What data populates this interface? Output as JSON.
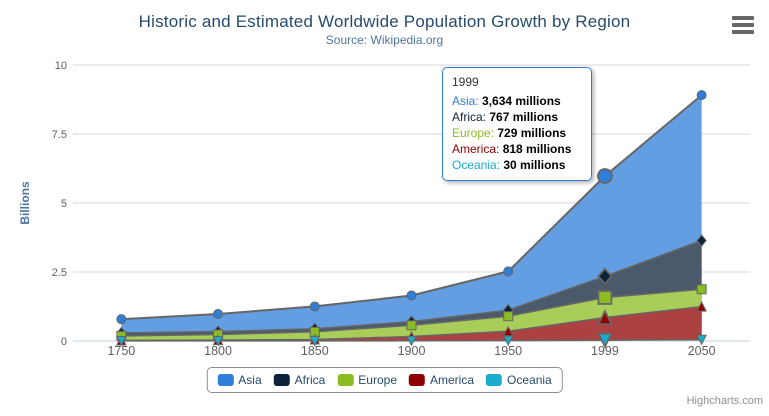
{
  "title": "Historic and Estimated Worldwide Population Growth by Region",
  "subtitle": "Source: Wikipedia.org",
  "credits": "Highcharts.com",
  "menu": {
    "icon": "hamburger-menu-icon"
  },
  "colors": {
    "title": "#274b6d",
    "subtitle": "#4d759e",
    "axis_title": "#4d759e",
    "tick_label": "#606060",
    "gridline": "#d8d8d8",
    "axis_line": "#c0d0e0",
    "series_outline": "#666666",
    "legend_text": "#274b6d",
    "legend_border": "#909090",
    "tooltip_border": "#2f7ed8"
  },
  "chart_data": {
    "type": "area",
    "stacking": "normal",
    "fill_opacity": 0.75,
    "title": "Historic and Estimated Worldwide Population Growth by Region",
    "subtitle": "Source: Wikipedia.org",
    "xlabel": "",
    "ylabel": "Billions",
    "ylim": [
      0,
      10
    ],
    "yticks": [
      0,
      2.5,
      5,
      7.5,
      10
    ],
    "ytick_labels": [
      "0",
      "2.5",
      "5",
      "7.5",
      "10"
    ],
    "grid": "horizontal",
    "legend_position": "bottom",
    "values_unit": "millions",
    "categories": [
      "1750",
      "1800",
      "1850",
      "1900",
      "1950",
      "1999",
      "2050"
    ],
    "stack_order_bottom_to_top": [
      "Oceania",
      "America",
      "Europe",
      "Africa",
      "Asia"
    ],
    "hovered_category_index": 5,
    "series": [
      {
        "name": "Asia",
        "color": "#2f7ed8",
        "marker": "circle",
        "values": [
          502,
          635,
          809,
          947,
          1402,
          3634,
          5268
        ]
      },
      {
        "name": "Africa",
        "color": "#0d233a",
        "marker": "diamond",
        "values": [
          106,
          107,
          111,
          133,
          221,
          767,
          1766
        ]
      },
      {
        "name": "Europe",
        "color": "#8bbc21",
        "marker": "square",
        "values": [
          163,
          203,
          276,
          408,
          547,
          729,
          628
        ]
      },
      {
        "name": "America",
        "color": "#910000",
        "marker": "triangle-up",
        "values": [
          18,
          31,
          54,
          156,
          339,
          818,
          1201
        ]
      },
      {
        "name": "Oceania",
        "color": "#1aadce",
        "marker": "triangle-down",
        "values": [
          2,
          2,
          2,
          6,
          13,
          30,
          46
        ]
      }
    ]
  },
  "tooltip": {
    "header": "1999",
    "rows": [
      {
        "label": "Asia",
        "value": "3,634 millions",
        "color": "#2f7ed8"
      },
      {
        "label": "Africa",
        "value": "767 millions",
        "color": "#0d233a"
      },
      {
        "label": "Europe",
        "value": "729 millions",
        "color": "#8bbc21"
      },
      {
        "label": "America",
        "value": "818 millions",
        "color": "#910000"
      },
      {
        "label": "Oceania",
        "value": "30 millions",
        "color": "#1aadce"
      }
    ]
  }
}
